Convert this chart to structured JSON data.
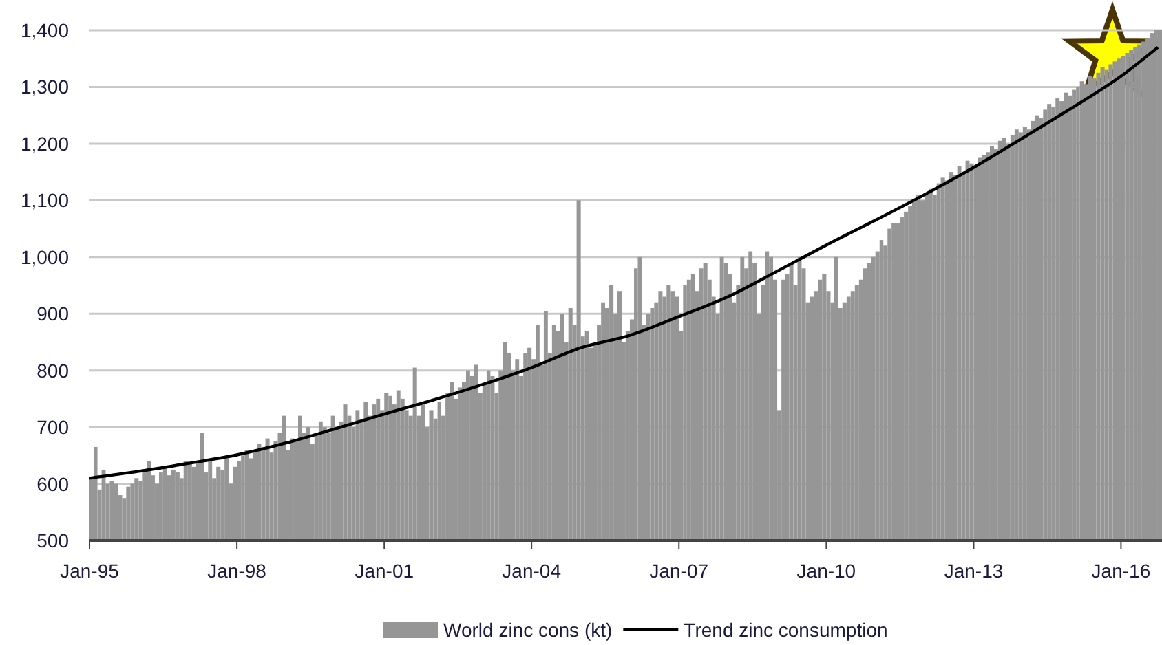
{
  "chart_data": {
    "type": "bar",
    "x": [
      "1995-01",
      "1995-02",
      "1995-03",
      "1995-04",
      "1995-05",
      "1995-06",
      "1995-07",
      "1995-08",
      "1995-09",
      "1995-10",
      "1995-11",
      "1995-12",
      "1996-01",
      "1996-02",
      "1996-03",
      "1996-04",
      "1996-05",
      "1996-06",
      "1996-07",
      "1996-08",
      "1996-09",
      "1996-10",
      "1996-11",
      "1996-12",
      "1997-01",
      "1997-02",
      "1997-03",
      "1997-04",
      "1997-05",
      "1997-06",
      "1997-07",
      "1997-08",
      "1997-09",
      "1997-10",
      "1997-11",
      "1997-12",
      "1998-01",
      "1998-02",
      "1998-03",
      "1998-04",
      "1998-05",
      "1998-06",
      "1998-07",
      "1998-08",
      "1998-09",
      "1998-10",
      "1998-11",
      "1998-12",
      "1999-01",
      "1999-02",
      "1999-03",
      "1999-04",
      "1999-05",
      "1999-06",
      "1999-07",
      "1999-08",
      "1999-09",
      "1999-10",
      "1999-11",
      "1999-12",
      "2000-01",
      "2000-02",
      "2000-03",
      "2000-04",
      "2000-05",
      "2000-06",
      "2000-07",
      "2000-08",
      "2000-09",
      "2000-10",
      "2000-11",
      "2000-12",
      "2001-01",
      "2001-02",
      "2001-03",
      "2001-04",
      "2001-05",
      "2001-06",
      "2001-07",
      "2001-08",
      "2001-09",
      "2001-10",
      "2001-11",
      "2001-12",
      "2002-01",
      "2002-02",
      "2002-03",
      "2002-04",
      "2002-05",
      "2002-06",
      "2002-07",
      "2002-08",
      "2002-09",
      "2002-10",
      "2002-11",
      "2002-12",
      "2003-01",
      "2003-02",
      "2003-03",
      "2003-04",
      "2003-05",
      "2003-06",
      "2003-07",
      "2003-08",
      "2003-09",
      "2003-10",
      "2003-11",
      "2003-12",
      "2004-01",
      "2004-02",
      "2004-03",
      "2004-04",
      "2004-05",
      "2004-06",
      "2004-07",
      "2004-08",
      "2004-09",
      "2004-10",
      "2004-11",
      "2004-12",
      "2005-01",
      "2005-02",
      "2005-03",
      "2005-04",
      "2005-05",
      "2005-06",
      "2005-07",
      "2005-08",
      "2005-09",
      "2005-10",
      "2005-11",
      "2005-12",
      "2006-01",
      "2006-02",
      "2006-03",
      "2006-04",
      "2006-05",
      "2006-06",
      "2006-07",
      "2006-08",
      "2006-09",
      "2006-10",
      "2006-11",
      "2006-12",
      "2007-01",
      "2007-02",
      "2007-03",
      "2007-04",
      "2007-05",
      "2007-06",
      "2007-07",
      "2007-08",
      "2007-09",
      "2007-10",
      "2007-11",
      "2007-12",
      "2008-01",
      "2008-02",
      "2008-03",
      "2008-04",
      "2008-05",
      "2008-06",
      "2008-07",
      "2008-08",
      "2008-09",
      "2008-10",
      "2008-11",
      "2008-12",
      "2009-01",
      "2009-02",
      "2009-03",
      "2009-04",
      "2009-05",
      "2009-06",
      "2009-07",
      "2009-08",
      "2009-09",
      "2009-10",
      "2009-11",
      "2009-12",
      "2010-01",
      "2010-02",
      "2010-03",
      "2010-04",
      "2010-05",
      "2010-06",
      "2010-07",
      "2010-08",
      "2010-09",
      "2010-10",
      "2010-11",
      "2010-12",
      "2011-01",
      "2011-02",
      "2011-03",
      "2011-04",
      "2011-05",
      "2011-06",
      "2011-07",
      "2011-08",
      "2011-09",
      "2011-10",
      "2011-11",
      "2011-12",
      "2012-01",
      "2012-02",
      "2012-03",
      "2012-04",
      "2012-05",
      "2012-06",
      "2012-07",
      "2012-08",
      "2012-09",
      "2012-10",
      "2012-11",
      "2012-12",
      "2013-01",
      "2013-02",
      "2013-03",
      "2013-04",
      "2013-05",
      "2013-06",
      "2013-07",
      "2013-08",
      "2013-09",
      "2013-10",
      "2013-11",
      "2013-12",
      "2014-01",
      "2014-02",
      "2014-03",
      "2014-04",
      "2014-05",
      "2014-06",
      "2014-07",
      "2014-08",
      "2014-09",
      "2014-10",
      "2014-11",
      "2014-12",
      "2015-01",
      "2015-02",
      "2015-03",
      "2015-04",
      "2015-05",
      "2015-06",
      "2015-07",
      "2015-08",
      "2015-09",
      "2015-10",
      "2015-11",
      "2015-12",
      "2016-01",
      "2016-02",
      "2016-03",
      "2016-04",
      "2016-05",
      "2016-06",
      "2016-07",
      "2016-08",
      "2016-09",
      "2016-10"
    ],
    "series": [
      {
        "name": "World zinc cons (kt)",
        "color": "#969696",
        "values": [
          610,
          665,
          590,
          625,
          600,
          605,
          600,
          580,
          575,
          595,
          600,
          610,
          605,
          620,
          640,
          615,
          600,
          620,
          630,
          615,
          625,
          620,
          610,
          640,
          635,
          630,
          640,
          690,
          620,
          640,
          610,
          630,
          625,
          645,
          600,
          630,
          640,
          650,
          660,
          645,
          660,
          670,
          665,
          680,
          655,
          675,
          690,
          720,
          660,
          680,
          675,
          720,
          690,
          700,
          670,
          690,
          710,
          700,
          690,
          720,
          700,
          710,
          740,
          720,
          700,
          730,
          710,
          745,
          720,
          740,
          750,
          730,
          760,
          755,
          740,
          765,
          750,
          730,
          720,
          805,
          720,
          740,
          700,
          730,
          715,
          745,
          720,
          760,
          780,
          750,
          770,
          780,
          800,
          790,
          810,
          760,
          780,
          800,
          790,
          760,
          800,
          850,
          830,
          800,
          820,
          790,
          830,
          840,
          820,
          880,
          810,
          905,
          830,
          880,
          870,
          900,
          850,
          910,
          880,
          1100,
          860,
          870,
          840,
          850,
          880,
          920,
          910,
          950,
          900,
          940,
          850,
          870,
          890,
          980,
          1000,
          880,
          900,
          910,
          920,
          940,
          930,
          950,
          940,
          930,
          870,
          950,
          960,
          970,
          940,
          980,
          990,
          960,
          930,
          900,
          1000,
          990,
          970,
          920,
          950,
          1000,
          980,
          1010,
          990,
          900,
          950,
          1010,
          1000,
          960,
          730,
          960,
          970,
          990,
          950,
          1000,
          980,
          920,
          930,
          940,
          960,
          970,
          940,
          920,
          1000,
          910,
          920,
          930,
          940,
          950,
          960,
          980,
          990,
          1000,
          1010,
          1030,
          1020,
          1050,
          1060,
          1060,
          1070,
          1080,
          1090,
          1100,
          1110,
          1100,
          1110,
          1120,
          1110,
          1130,
          1140,
          1135,
          1150,
          1145,
          1160,
          1150,
          1170,
          1165,
          1160,
          1175,
          1180,
          1185,
          1195,
          1190,
          1205,
          1210,
          1200,
          1215,
          1225,
          1220,
          1230,
          1225,
          1240,
          1250,
          1245,
          1260,
          1270,
          1265,
          1280,
          1275,
          1290,
          1285,
          1295,
          1300,
          1310,
          1305,
          1320,
          1315,
          1325,
          1335,
          1330,
          1340,
          1345,
          1350,
          1355,
          1360,
          1365,
          1370,
          1375,
          1380,
          1385,
          1395,
          1400,
          1400
        ]
      },
      {
        "name": "Trend zinc consumption",
        "type": "line",
        "color": "#000000",
        "x": [
          "1995-01",
          "1996-01",
          "1997-01",
          "1998-01",
          "1999-01",
          "2000-01",
          "2001-01",
          "2002-01",
          "2003-01",
          "2004-01",
          "2005-01",
          "2006-01",
          "2007-01",
          "2008-01",
          "2009-01",
          "2010-01",
          "2011-01",
          "2012-01",
          "2013-01",
          "2014-01",
          "2015-01",
          "2016-01",
          "2016-10"
        ],
        "values": [
          610,
          622,
          636,
          651,
          672,
          697,
          723,
          748,
          775,
          805,
          840,
          862,
          895,
          930,
          975,
          1021,
          1065,
          1110,
          1158,
          1210,
          1263,
          1319,
          1370
        ]
      }
    ],
    "xlim": [
      "1995-01",
      "2016-11"
    ],
    "xticks": [
      {
        "value": "1995-01",
        "label": "Jan-95"
      },
      {
        "value": "1998-01",
        "label": "Jan-98"
      },
      {
        "value": "2001-01",
        "label": "Jan-01"
      },
      {
        "value": "2004-01",
        "label": "Jan-04"
      },
      {
        "value": "2007-01",
        "label": "Jan-07"
      },
      {
        "value": "2010-01",
        "label": "Jan-10"
      },
      {
        "value": "2013-01",
        "label": "Jan-13"
      },
      {
        "value": "2016-01",
        "label": "Jan-16"
      }
    ],
    "ylim": [
      500,
      1400
    ],
    "yticks": [
      500,
      600,
      700,
      800,
      900,
      {
        "value": 1000,
        "label": "1,000"
      },
      {
        "value": 1100,
        "label": "1,100"
      },
      {
        "value": 1200,
        "label": "1,200"
      },
      {
        "value": 1300,
        "label": "1,300"
      },
      {
        "value": 1400,
        "label": "1,400"
      }
    ],
    "grid": "y",
    "legend": "bottom",
    "line_style": "solid",
    "marker": "none"
  }
}
